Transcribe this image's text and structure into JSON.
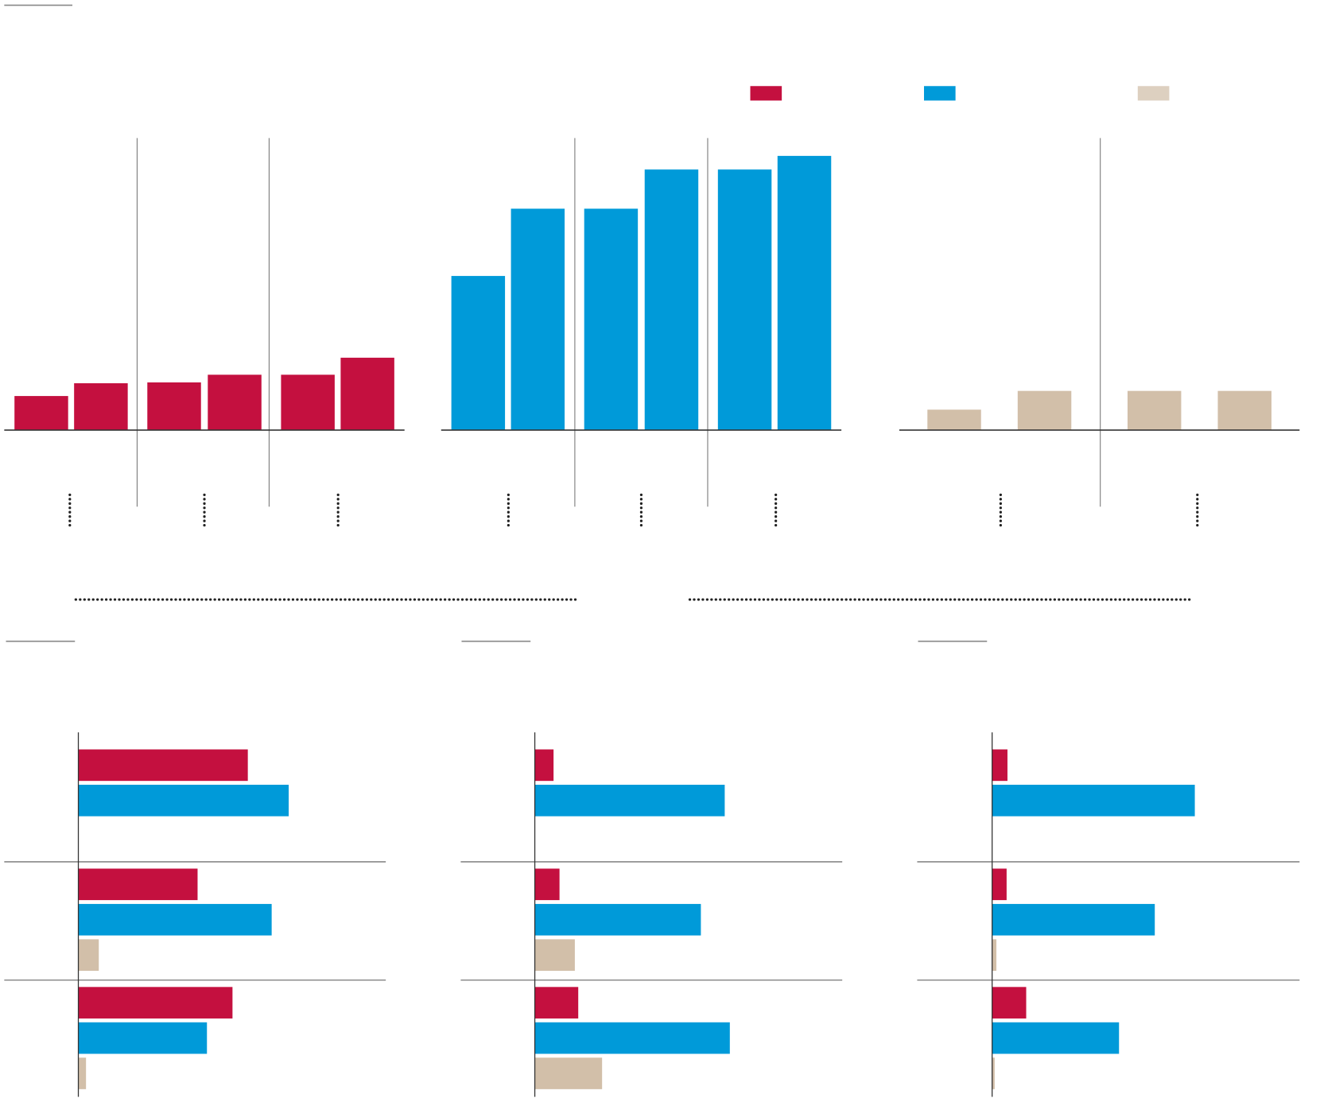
{
  "colors": {
    "red": "#c4103f",
    "blue": "#009ad9",
    "tan": "#d2bfa9",
    "tan_legend": "#ddd0c0",
    "axis": "#333333",
    "rule": "#888888"
  },
  "legend": [
    {
      "series": "red",
      "color": "#c4103f"
    },
    {
      "series": "blue",
      "color": "#009ad9"
    },
    {
      "series": "tan",
      "color": "#ddd0c0"
    }
  ],
  "chart_data": [
    {
      "type": "bar",
      "title": "",
      "xlabel": "",
      "ylabel": "",
      "ylim": [
        0,
        340
      ],
      "grid": false,
      "groups": [
        {
          "values": [
            40,
            55
          ]
        },
        {
          "values": [
            56,
            65
          ]
        },
        {
          "values": [
            65,
            85
          ]
        }
      ],
      "series_color": "red"
    },
    {
      "type": "bar",
      "title": "",
      "xlabel": "",
      "ylabel": "",
      "ylim": [
        0,
        340
      ],
      "grid": false,
      "groups": [
        {
          "values": [
            181,
            260
          ]
        },
        {
          "values": [
            260,
            306
          ]
        },
        {
          "values": [
            306,
            322
          ]
        }
      ],
      "series_color": "blue"
    },
    {
      "type": "bar",
      "title": "",
      "xlabel": "",
      "ylabel": "",
      "ylim": [
        0,
        340
      ],
      "grid": false,
      "groups": [
        {
          "values": [
            24,
            46
          ]
        },
        {
          "values": [
            46,
            46
          ]
        }
      ],
      "series_color": "tan"
    },
    {
      "type": "bar",
      "orientation": "horizontal",
      "xlim": [
        0,
        360
      ],
      "groups": [
        {
          "red": 199,
          "blue": 247
        },
        {
          "red": 140,
          "blue": 227,
          "tan": 24
        },
        {
          "red": 181,
          "blue": 151,
          "tan": 9
        }
      ]
    },
    {
      "type": "bar",
      "orientation": "horizontal",
      "xlim": [
        0,
        360
      ],
      "groups": [
        {
          "red": 22,
          "blue": 223
        },
        {
          "red": 29,
          "blue": 195,
          "tan": 47
        },
        {
          "red": 51,
          "blue": 229,
          "tan": 79
        }
      ]
    },
    {
      "type": "bar",
      "orientation": "horizontal",
      "xlim": [
        0,
        360
      ],
      "groups": [
        {
          "red": 18,
          "blue": 238
        },
        {
          "red": 17,
          "blue": 191,
          "tan": 5
        },
        {
          "red": 40,
          "blue": 149,
          "tan": 3
        }
      ]
    }
  ]
}
